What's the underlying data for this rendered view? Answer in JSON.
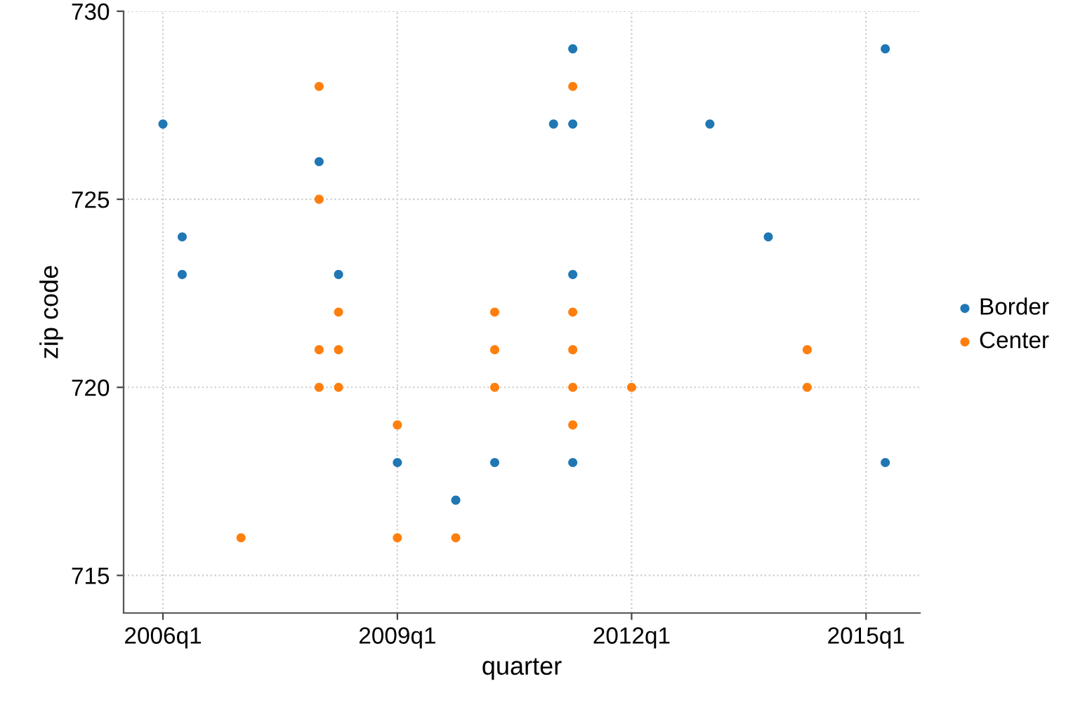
{
  "chart_data": {
    "type": "scatter",
    "xlabel": "quarter",
    "ylabel": "zip code",
    "xlim": [
      "2005-07",
      "2015-09-10"
    ],
    "xticks": [
      {
        "value": "2006-01",
        "label": "2006q1"
      },
      {
        "value": "2009-01",
        "label": "2009q1"
      },
      {
        "value": "2012-01",
        "label": "2012q1"
      },
      {
        "value": "2015-01",
        "label": "2015q1"
      }
    ],
    "ylim": [
      714,
      730
    ],
    "yticks": [
      715,
      720,
      725,
      730
    ],
    "grid": true,
    "legend": "right",
    "marker": "circle",
    "series": [
      {
        "name": "Border",
        "color": "#1f77b4",
        "x": [
          "2006-01",
          "2006-04",
          "2006-04",
          "2008-01",
          "2008-04",
          "2009-01",
          "2009-10",
          "2010-04",
          "2011-01",
          "2011-04",
          "2011-04",
          "2011-04",
          "2011-04",
          "2013-01",
          "2013-10",
          "2015-04",
          "2015-04"
        ],
        "values": [
          727,
          724,
          723,
          726,
          723,
          718,
          717,
          718,
          727,
          729,
          727,
          723,
          718,
          727,
          724,
          729,
          718
        ]
      },
      {
        "name": "Center",
        "color": "#ff7f0e",
        "x": [
          "2007-01",
          "2008-01",
          "2008-01",
          "2008-01",
          "2008-01",
          "2008-04",
          "2008-04",
          "2008-04",
          "2009-01",
          "2009-01",
          "2009-10",
          "2010-04",
          "2010-04",
          "2010-04",
          "2011-04",
          "2011-04",
          "2011-04",
          "2011-04",
          "2011-04",
          "2012-01",
          "2014-04",
          "2014-04"
        ],
        "values": [
          716,
          728,
          725,
          721,
          720,
          722,
          721,
          720,
          719,
          716,
          716,
          722,
          721,
          720,
          728,
          722,
          721,
          720,
          719,
          720,
          721,
          720
        ]
      }
    ]
  }
}
